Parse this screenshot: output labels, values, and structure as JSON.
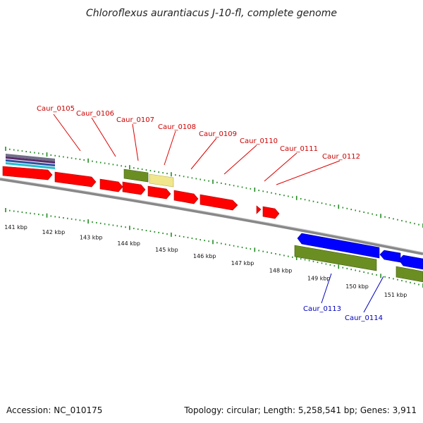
{
  "title": "Chloroflexus aurantiacus J-10-fl, complete genome",
  "accession": "Accession: NC_010175",
  "summary": "Topology: circular; Length: 5,258,541 bp; Genes: 3,911",
  "scale_labels": [
    "141 kbp",
    "142 kbp",
    "143 kbp",
    "144 kbp",
    "145 kbp",
    "146 kbp",
    "147 kbp",
    "148 kbp",
    "149 kbp",
    "150 kbp",
    "151 kbp"
  ],
  "top_genes": [
    "Caur_0105",
    "Caur_0106",
    "Caur_0107",
    "Caur_0108",
    "Caur_0109",
    "Caur_0110",
    "Caur_0111",
    "Caur_0112"
  ],
  "bottom_genes": [
    "Caur_0113",
    "Caur_0114"
  ],
  "colors": {
    "forward_cds": "#ff0000",
    "reverse_cds": "#0000ff",
    "green_feature": "#6b8e23",
    "yellow_feature": "#f0e68c",
    "tick": "#228b22",
    "backbone": "#888888",
    "top_label": "#cc0000",
    "bottom_label": "#0000bb"
  }
}
